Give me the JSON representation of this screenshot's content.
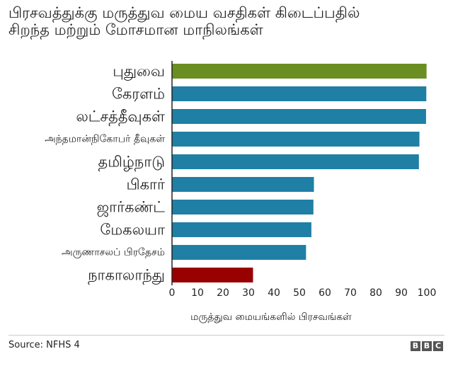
{
  "title_lines": [
    "பிரசவத்துக்கு மருத்துவ மைய வசதிகள் கிடைப்பதில்",
    "சிறந்த மற்றும் மோசமான மாநிலங்கள்"
  ],
  "source": "Source: NFHS 4",
  "brand": [
    "B",
    "B",
    "C"
  ],
  "colors": {
    "best": "#6b8e23",
    "middle": "#1f7fa5",
    "worst": "#990000",
    "axis": "#222222"
  },
  "chart_data": {
    "type": "bar",
    "orientation": "horizontal",
    "categories": [
      "புதுவை",
      "கேரளம்",
      "லட்சத்தீவுகள்",
      "அந்தமான்நிகோபர் தீவுகள்",
      "தமிழ்நாடு",
      "பிகார்",
      "ஜார்கண்ட்",
      "மேகலயா",
      "அருணாசலப் பிரதேசம்",
      "நாகாலாந்து"
    ],
    "values": [
      99.9,
      99.8,
      99.7,
      97.1,
      96.9,
      55.7,
      55.5,
      54.7,
      52.6,
      31.8
    ],
    "bar_colors": [
      "best",
      "middle",
      "middle",
      "middle",
      "middle",
      "middle",
      "middle",
      "middle",
      "middle",
      "worst"
    ],
    "xlabel": "மருத்துவ மையங்களில் பிரசவங்கள்",
    "xlim": [
      0,
      100
    ],
    "xticks": [
      "0",
      "10",
      "20",
      "30",
      "40",
      "50",
      "60",
      "70",
      "80",
      "90",
      "100"
    ],
    "grid": false,
    "legend": "none"
  }
}
